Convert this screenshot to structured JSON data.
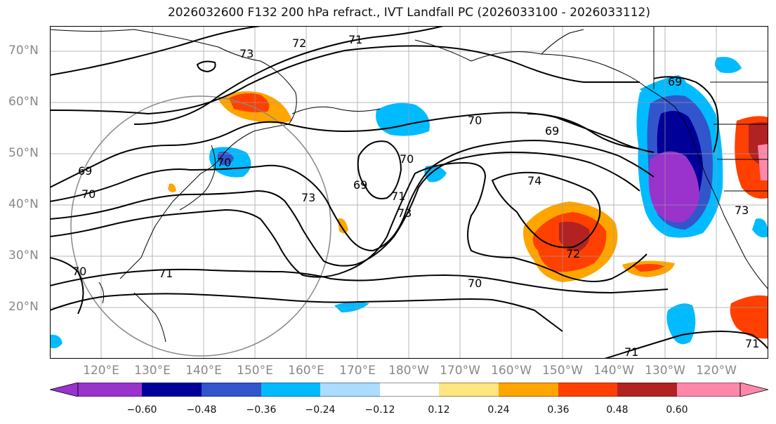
{
  "title": "2026032600 F132 200 hPa refract., IVT Landfall PC (2026033100 - 2026033112)",
  "lat_labels": [
    "70°N",
    "60°N",
    "50°N",
    "40°N",
    "30°N",
    "20°N"
  ],
  "lon_labels": [
    "120°E",
    "130°E",
    "140°E",
    "150°E",
    "160°E",
    "170°E",
    "180°W",
    "170°W",
    "160°W",
    "150°W",
    "140°W",
    "130°W",
    "120°W"
  ],
  "contour_labels": [
    "73",
    "72",
    "71",
    "70",
    "69",
    "70",
    "70",
    "69",
    "70",
    "69",
    "71",
    "73",
    "74",
    "73",
    "72",
    "71",
    "70",
    "70",
    "71",
    "71",
    "73",
    "69"
  ],
  "colorbar": {
    "ticks": [
      "−0.60",
      "−0.48",
      "−0.36",
      "−0.24",
      "−0.12",
      "0.12",
      "0.24",
      "0.36",
      "0.48",
      "0.60"
    ],
    "colors": [
      "#9933cc",
      "#000099",
      "#3355cc",
      "#00bbff",
      "#aaddff",
      "#ffffff",
      "#ffe680",
      "#ffa500",
      "#ff4000",
      "#b22222",
      "#ff88aa"
    ]
  }
}
